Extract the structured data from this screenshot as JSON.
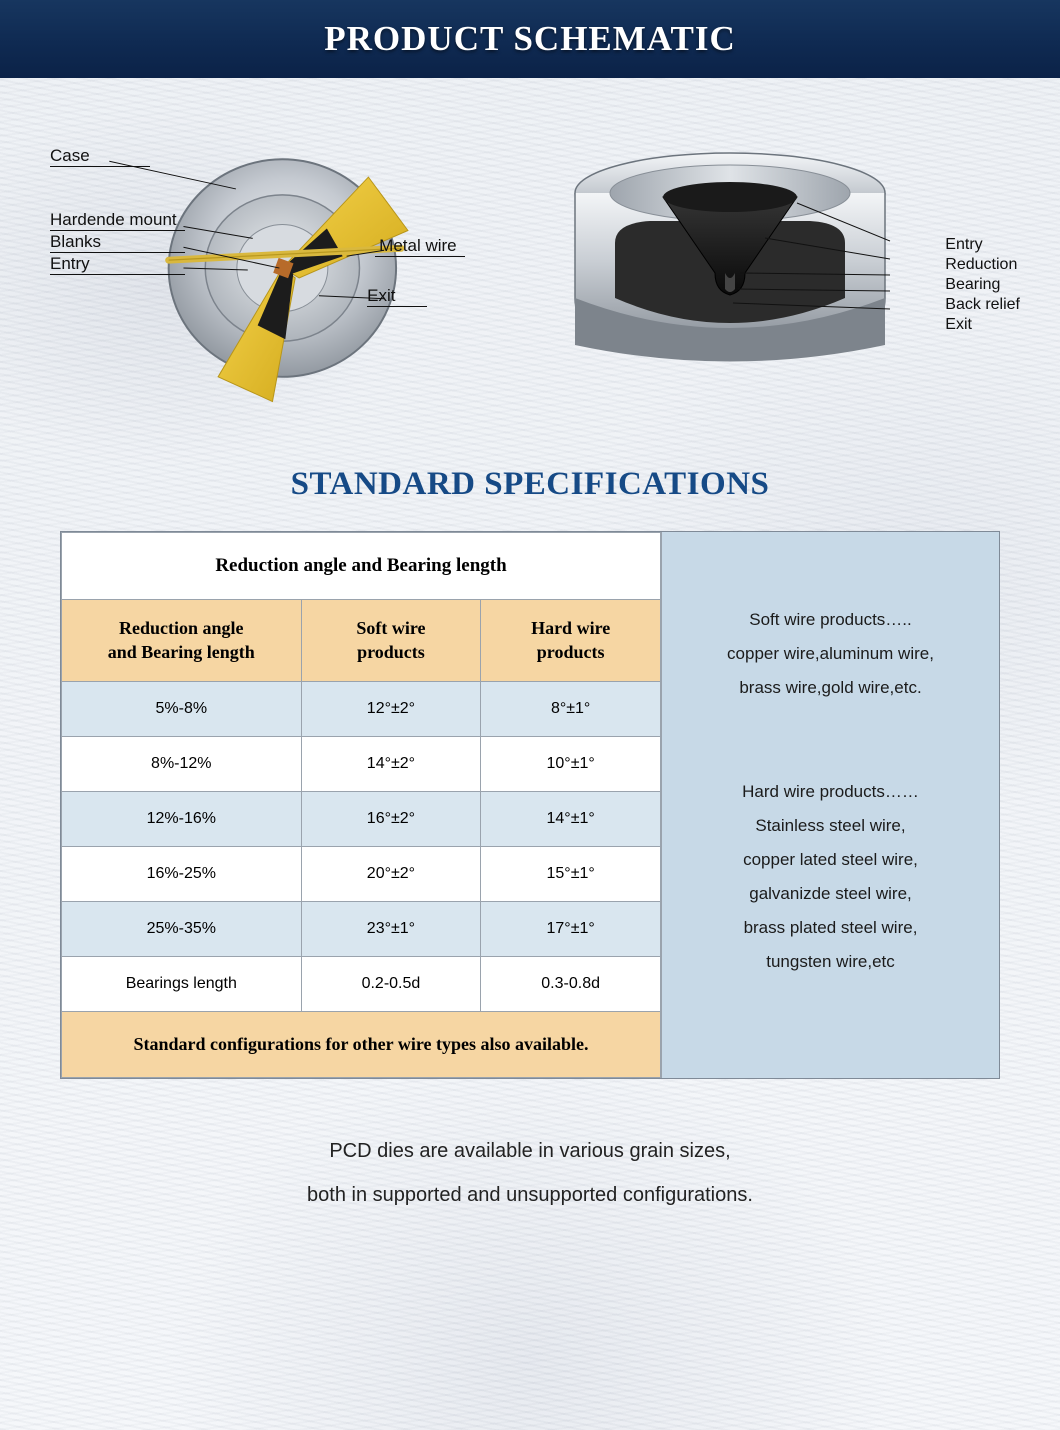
{
  "header": {
    "title": "PRODUCT SCHEMATIC"
  },
  "header_style": {
    "bg_gradient": [
      "#17365f",
      "#0f2a52",
      "#0b2247"
    ],
    "text_color": "#ffffff",
    "font_family": "Georgia, serif",
    "font_size_pt": 26
  },
  "schematic": {
    "left_labels": {
      "case": "Case",
      "mount": "Hardende mount",
      "blanks": "Blanks",
      "entry": "Entry",
      "metal_wire": "Metal wire",
      "exit": "Exit"
    },
    "right_labels": {
      "entry": "Entry",
      "reduction": "Reduction",
      "bearing": "Bearing",
      "back_relief": "Back relief",
      "exit": "Exit"
    },
    "colors": {
      "case_metal": "#b9bfc5",
      "case_metal_light": "#e3e6ea",
      "case_metal_dark": "#8d949c",
      "cutaway_wedge": "#e8bf2d",
      "wedge_shadow": "#c7a41f",
      "core_black": "#1a1a1a",
      "wire": "#d9b83e",
      "label_line": "#111111"
    }
  },
  "specs": {
    "title": "STANDARD SPECIFICATIONS",
    "title_color": "#164a86",
    "table_title": "Reduction angle and Bearing length",
    "columns": [
      "Reduction angle\nand Bearing length",
      "Soft wire\nproducts",
      "Hard wire\nproducts"
    ],
    "rows": [
      {
        "range": "5%-8%",
        "soft": "12°±2°",
        "hard": "8°±1°",
        "alt": true
      },
      {
        "range": "8%-12%",
        "soft": "14°±2°",
        "hard": "10°±1°",
        "alt": false
      },
      {
        "range": "12%-16%",
        "soft": "16°±2°",
        "hard": "14°±1°",
        "alt": true
      },
      {
        "range": "16%-25%",
        "soft": "20°±2°",
        "hard": "15°±1°",
        "alt": false
      },
      {
        "range": "25%-35%",
        "soft": "23°±1°",
        "hard": "17°±1°",
        "alt": true
      },
      {
        "range": "Bearings length",
        "soft": "0.2-0.5d",
        "hard": "0.3-0.8d",
        "alt": false
      }
    ],
    "footer": "Standard configurations for other wire types also available.",
    "side": {
      "soft_heading": "Soft wire products…..",
      "soft_line1": "copper wire,aluminum wire,",
      "soft_line2": "brass wire,gold wire,etc.",
      "hard_heading": "Hard wire products……",
      "hard_line1": "Stainless steel wire,",
      "hard_line2": "copper lated steel wire,",
      "hard_line3": "galvanizde steel wire,",
      "hard_line4": "brass plated steel wire,",
      "hard_line5": "tungsten wire,etc"
    },
    "style": {
      "header_bg": "#f6d6a3",
      "alt_row_bg": "#d9e6ef",
      "row_bg": "#ffffff",
      "side_bg": "#c7d9e7",
      "border_color": "#9aa3ad",
      "font_size_pt": 12,
      "header_font_family": "Georgia, serif"
    }
  },
  "footer_note": {
    "line1": "PCD dies are available in various grain sizes,",
    "line2": "both in supported and unsupported configurations."
  }
}
